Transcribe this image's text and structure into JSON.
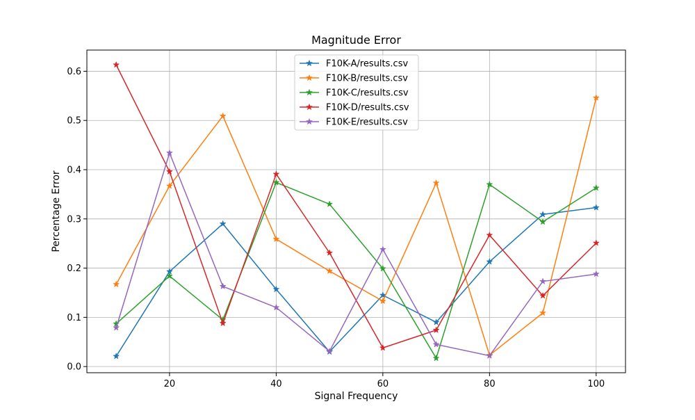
{
  "chart_data": {
    "type": "line",
    "title": "Magnitude Error",
    "xlabel": "Signal Frequency",
    "ylabel": "Percentage Error",
    "x": [
      10,
      20,
      30,
      40,
      50,
      60,
      70,
      80,
      90,
      100
    ],
    "xlim": [
      4.5,
      105.5
    ],
    "ylim": [
      -0.0125,
      0.643
    ],
    "xticks": [
      20,
      40,
      60,
      80,
      100
    ],
    "xtick_labels": [
      "20",
      "40",
      "60",
      "80",
      "100"
    ],
    "yticks": [
      0.0,
      0.1,
      0.2,
      0.3,
      0.4,
      0.5,
      0.6
    ],
    "ytick_labels": [
      "0.0",
      "0.1",
      "0.2",
      "0.3",
      "0.4",
      "0.5",
      "0.6"
    ],
    "grid": true,
    "marker": "star",
    "legend_position": "upper center",
    "series": [
      {
        "name": "F10K-A/results.csv",
        "color": "#1f77b4",
        "values": [
          0.021,
          0.193,
          0.29,
          0.157,
          0.03,
          0.145,
          0.09,
          0.213,
          0.309,
          0.323
        ]
      },
      {
        "name": "F10K-B/results.csv",
        "color": "#ff7f0e",
        "values": [
          0.167,
          0.367,
          0.509,
          0.259,
          0.194,
          0.133,
          0.373,
          0.023,
          0.109,
          0.546
        ]
      },
      {
        "name": "F10K-C/results.csv",
        "color": "#2ca02c",
        "values": [
          0.087,
          0.184,
          0.095,
          0.374,
          0.33,
          0.199,
          0.017,
          0.37,
          0.294,
          0.363
        ]
      },
      {
        "name": "F10K-D/results.csv",
        "color": "#d62728",
        "values": [
          0.613,
          0.396,
          0.088,
          0.391,
          0.231,
          0.038,
          0.074,
          0.267,
          0.144,
          0.251
        ]
      },
      {
        "name": "F10K-E/results.csv",
        "color": "#9467bd",
        "values": [
          0.079,
          0.434,
          0.163,
          0.12,
          0.031,
          0.238,
          0.045,
          0.022,
          0.173,
          0.188
        ]
      }
    ]
  }
}
